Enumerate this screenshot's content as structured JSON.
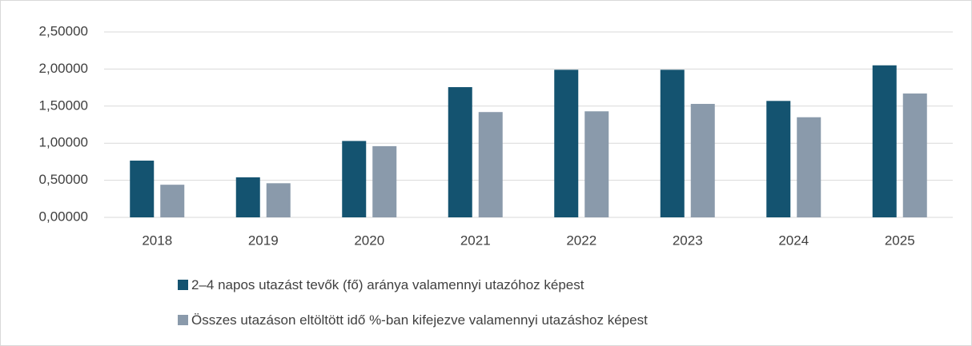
{
  "chart_data": {
    "type": "bar",
    "categories": [
      "2018",
      "2019",
      "2020",
      "2021",
      "2022",
      "2023",
      "2024",
      "2025"
    ],
    "series": [
      {
        "name": "2–4 napos utazást tevők (fő) aránya valamennyi utazóhoz képest",
        "color": "#145370",
        "values": [
          0.765,
          0.54,
          1.03,
          1.756,
          1.99,
          1.99,
          1.57,
          2.05
        ]
      },
      {
        "name": "Összes utazáson eltöltött idő %-ban kifejezve valamennyi utazáshoz képest",
        "color": "#8a9aab",
        "values": [
          0.44,
          0.46,
          0.96,
          1.42,
          1.43,
          1.53,
          1.35,
          1.67
        ]
      }
    ],
    "ylim": [
      0,
      2.5
    ],
    "yticks": [
      {
        "value": 0,
        "label": "0,00000"
      },
      {
        "value": 0.5,
        "label": "0,50000"
      },
      {
        "value": 1,
        "label": "1,00000"
      },
      {
        "value": 1.5,
        "label": "1,50000"
      },
      {
        "value": 2,
        "label": "2,00000"
      },
      {
        "value": 2.5,
        "label": "2,50000"
      }
    ],
    "grid": true,
    "legend": "bottom"
  }
}
